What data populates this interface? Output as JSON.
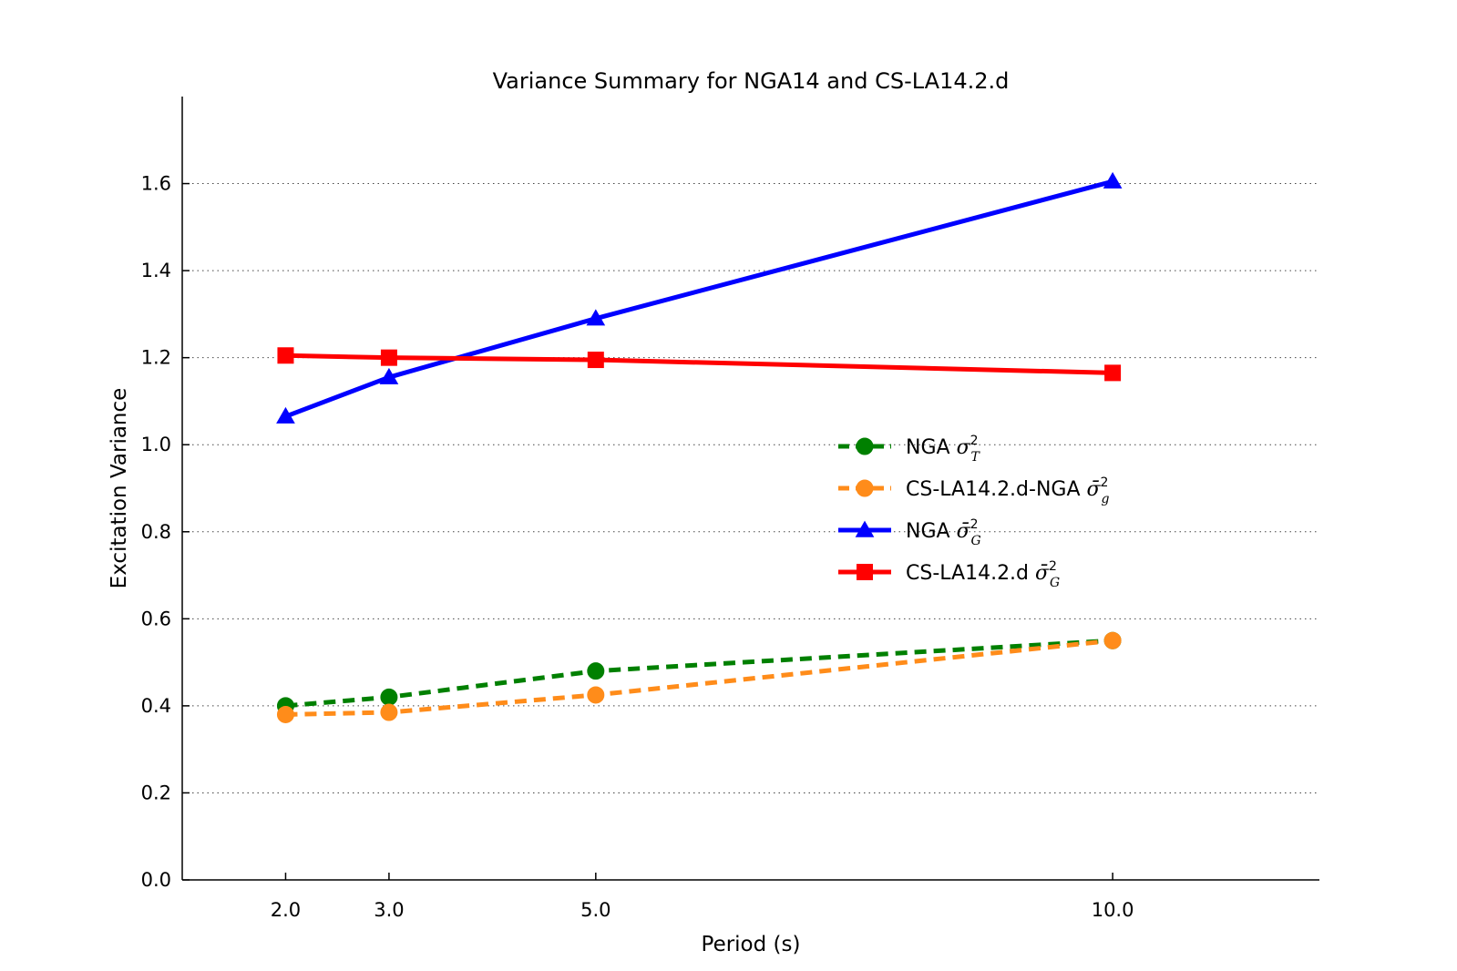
{
  "chart_data": {
    "type": "line",
    "title": "Variance Summary for NGA14 and CS-LA14.2.d",
    "xlabel": "Period (s)",
    "ylabel": "Excitation Variance",
    "x": [
      2.0,
      3.0,
      5.0,
      10.0
    ],
    "x_tick_labels": [
      "2.0",
      "3.0",
      "5.0",
      "10.0"
    ],
    "xlim": [
      1.0,
      12.0
    ],
    "ylim": [
      0.0,
      1.8
    ],
    "y_ticks": [
      0.0,
      0.2,
      0.4,
      0.6,
      0.8,
      1.0,
      1.2,
      1.4,
      1.6
    ],
    "y_tick_labels": [
      "0.0",
      "0.2",
      "0.4",
      "0.6",
      "0.8",
      "1.0",
      "1.2",
      "1.4",
      "1.6"
    ],
    "grid": "y-dotted",
    "legend_position": "center-right",
    "series": [
      {
        "name": "NGA σ²_T",
        "label": "NGA ",
        "sym": "σ",
        "sup": "2",
        "sub": "T",
        "bar": false,
        "color": "#008000",
        "style": "dashed",
        "marker": "circle",
        "values": [
          0.4,
          0.42,
          0.48,
          0.55
        ]
      },
      {
        "name": "CS-LA14.2.d-NGA σ̄²_g",
        "label": "CS-LA14.2.d-NGA ",
        "sym": "σ",
        "sup": "2",
        "sub": "g",
        "bar": true,
        "color": "#ff8c1a",
        "style": "dashed",
        "marker": "circle",
        "values": [
          0.38,
          0.385,
          0.425,
          0.55
        ]
      },
      {
        "name": "NGA σ̄²_G",
        "label": "NGA ",
        "sym": "σ",
        "sup": "2",
        "sub": "G",
        "bar": true,
        "color": "#0000ff",
        "style": "solid",
        "marker": "triangle",
        "values": [
          1.065,
          1.155,
          1.29,
          1.605
        ]
      },
      {
        "name": "CS-LA14.2.d σ̄²_G",
        "label": "CS-LA14.2.d ",
        "sym": "σ",
        "sup": "2",
        "sub": "G",
        "bar": true,
        "color": "#ff0000",
        "style": "solid",
        "marker": "square",
        "values": [
          1.205,
          1.2,
          1.195,
          1.165
        ]
      }
    ]
  }
}
